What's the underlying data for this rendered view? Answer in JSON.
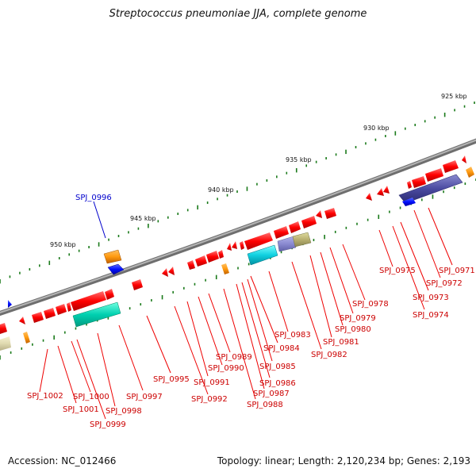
{
  "title": "Streptococcus pneumoniae JJA, complete genome",
  "footer": {
    "accession": "Accession: NC_012466",
    "info": "Topology: linear; Length: 2,120,234 bp; Genes: 2,193"
  },
  "colors": {
    "backbone": "#8a8a8a",
    "gene": "#ff0000",
    "gene_label": "#cc0000",
    "highlight_label": "#0000cc",
    "tick": "#1a7a1a"
  },
  "scale_labels": [
    "925 kbp",
    "930 kbp",
    "935 kbp",
    "940 kbp",
    "945 kbp",
    "950 kbp"
  ],
  "highlight_gene": "SPJ_0996",
  "gene_labels": [
    "SPJ_0971",
    "SPJ_0972",
    "SPJ_0973",
    "SPJ_0974",
    "SPJ_0975",
    "SPJ_0978",
    "SPJ_0979",
    "SPJ_0980",
    "SPJ_0981",
    "SPJ_0982",
    "SPJ_0983",
    "SPJ_0984",
    "SPJ_0985",
    "SPJ_0986",
    "SPJ_0987",
    "SPJ_0988",
    "SPJ_0989",
    "SPJ_0990",
    "SPJ_0991",
    "SPJ_0992",
    "SPJ_0995",
    "SPJ_0997",
    "SPJ_0998",
    "SPJ_0999",
    "SPJ_1000",
    "SPJ_1001",
    "SPJ_1002"
  ]
}
